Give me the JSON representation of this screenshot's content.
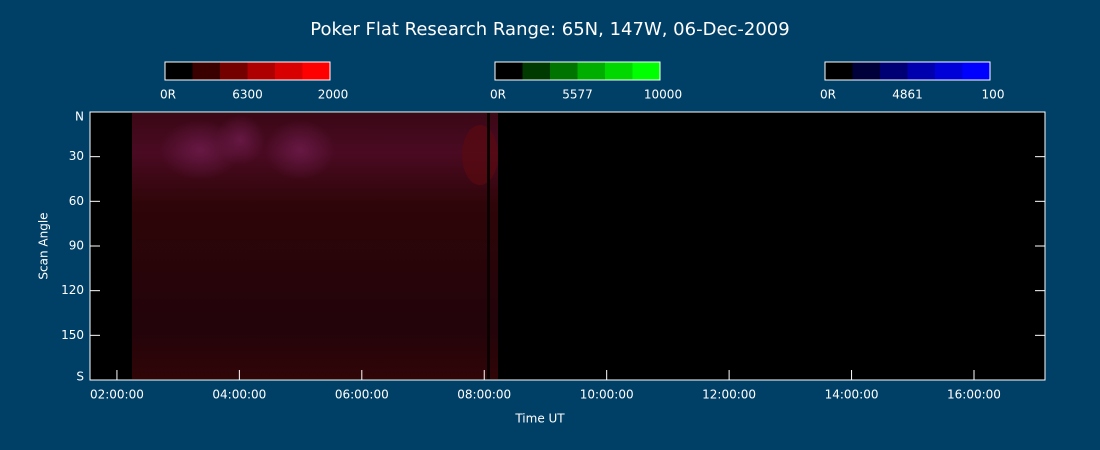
{
  "chart_data": {
    "type": "keogram",
    "title": "Poker Flat Research Range: 65N, 147W, 06-Dec-2009",
    "x_label": "Time UT",
    "y_label": "Scan Angle",
    "xlim": [
      1.56,
      17.16
    ],
    "xticks": [
      {
        "value": 2,
        "label": "02:00:00"
      },
      {
        "value": 4,
        "label": "04:00:00"
      },
      {
        "value": 6,
        "label": "06:00:00"
      },
      {
        "value": 8,
        "label": "08:00:00"
      },
      {
        "value": 10,
        "label": "10:00:00"
      },
      {
        "value": 12,
        "label": "12:00:00"
      },
      {
        "value": 14,
        "label": "14:00:00"
      },
      {
        "value": 16,
        "label": "16:00:00"
      }
    ],
    "ylim": [
      0,
      180
    ],
    "yticks": [
      {
        "value": 0,
        "label": "N"
      },
      30,
      60,
      90,
      120,
      150,
      {
        "value": 180,
        "label": "S"
      }
    ],
    "colorbars": [
      {
        "min": "0R",
        "line": "6300",
        "max": "2000",
        "colors": [
          "#000000",
          "#3a0000",
          "#740000",
          "#ae0000",
          "#d80000",
          "#ff0000"
        ]
      },
      {
        "min": "0R",
        "line": "5577",
        "max": "10000",
        "colors": [
          "#000000",
          "#003a00",
          "#007400",
          "#00ae00",
          "#00d800",
          "#00ff00"
        ]
      },
      {
        "min": "0R",
        "line": "4861",
        "max": "100",
        "colors": [
          "#000000",
          "#00003a",
          "#000074",
          "#0000ae",
          "#0000d8",
          "#0000ff"
        ]
      }
    ]
  }
}
